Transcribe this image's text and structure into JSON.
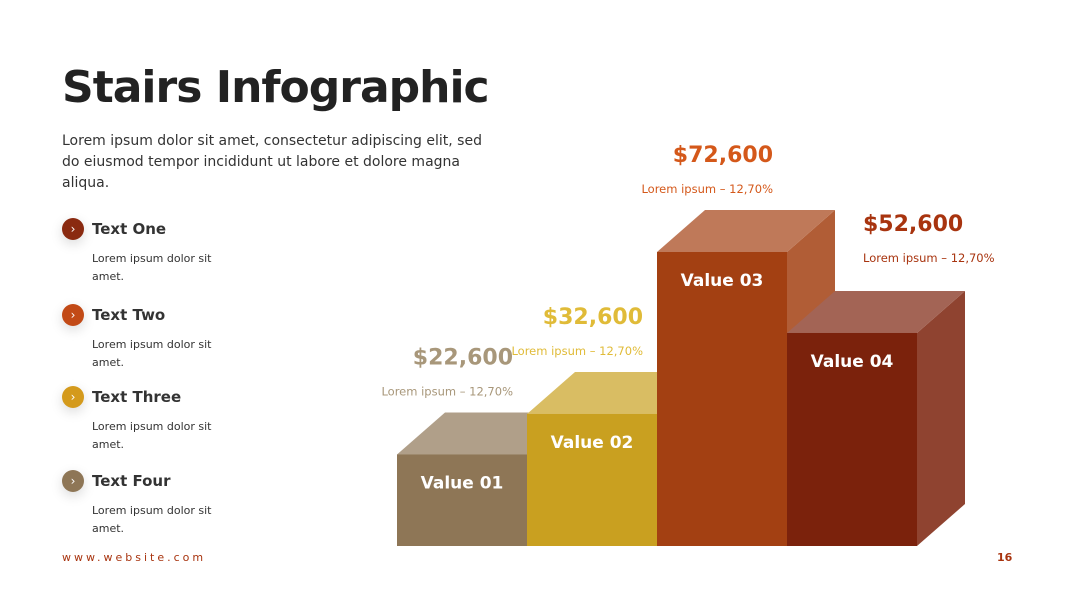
{
  "slide": {
    "title": "Stairs Infographic",
    "description": "Lorem ipsum dolor sit amet, consectetur adipiscing elit, sed do eiusmod tempor incididunt ut labore et dolore magna aliqua.",
    "items": [
      {
        "title": "Text One",
        "text": "Lorem ipsum dolor sit amet.",
        "color": "#8a2a10"
      },
      {
        "title": "Text Two",
        "text": "Lorem ipsum dolor sit amet.",
        "color": "#c24a16"
      },
      {
        "title": "Text Three",
        "text": "Lorem ipsum dolor sit amet.",
        "color": "#d49a1c"
      },
      {
        "title": "Text Four",
        "text": "Lorem ipsum dolor sit amet.",
        "color": "#8e7656"
      }
    ],
    "website": "www.website.com",
    "page": "16"
  },
  "chart_data": {
    "type": "bar",
    "categories": [
      "Value 01",
      "Value 02",
      "Value 03",
      "Value 04"
    ],
    "values": [
      22600,
      32600,
      72600,
      52600
    ],
    "value_labels": [
      "$22,600",
      "$32,600",
      "$72,600",
      "$52,600"
    ],
    "annotations": [
      "Lorem ipsum  – 12,70%",
      "Lorem ipsum  – 12,70%",
      "Lorem ipsum  – 12,70%",
      "Lorem ipsum  – 12,70%"
    ],
    "colors": [
      "#8e7656",
      "#c9a020",
      "#a34012",
      "#7b220c"
    ],
    "label_colors": [
      "#a8977a",
      "#e0bb38",
      "#d4581a",
      "#a8340f"
    ]
  }
}
